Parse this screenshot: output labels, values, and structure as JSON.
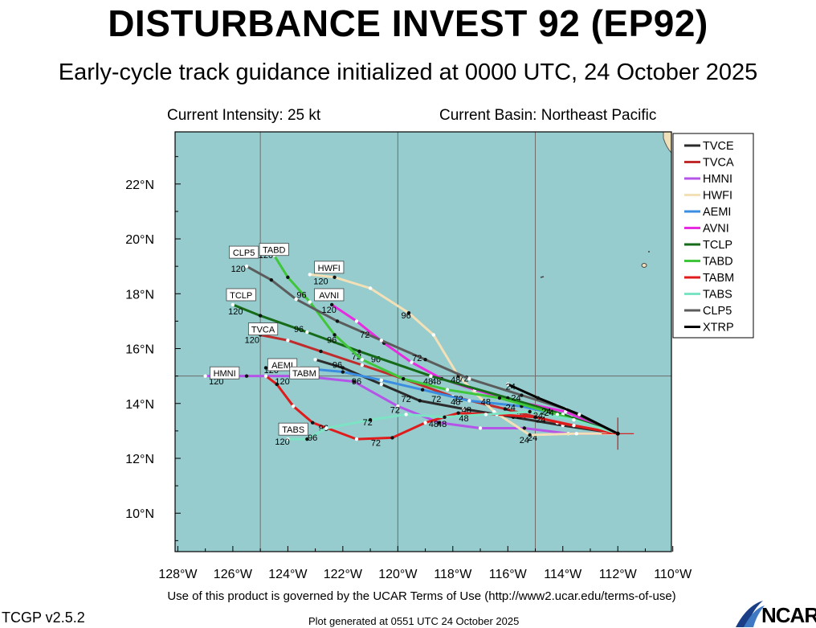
{
  "header": {
    "title": "DISTURBANCE INVEST 92 (EP92)",
    "subtitle": "Early-cycle track guidance initialized at 0000 UTC, 24 October 2025",
    "intensity": "Current Intensity: 25 kt",
    "basin": "Current Basin: Northeast Pacific"
  },
  "footer": {
    "terms": "Use of this product is governed by the UCAR Terms of Use (http://www2.ucar.edu/terms-of-use)",
    "version": "TCGP v2.5.2",
    "generated": "Plot generated at 0551 UTC   24 October 2025",
    "logo_text": "NCAR"
  },
  "colors": {
    "ocean": "#96cccd",
    "land": "#efe0b9",
    "grid": "#6d6d6d"
  },
  "chart_data": {
    "type": "line",
    "x_ticks": [
      "128°W",
      "126°W",
      "124°W",
      "122°W",
      "120°W",
      "118°W",
      "116°W",
      "114°W",
      "112°W",
      "110°W"
    ],
    "x_tick_values": [
      -128,
      -126,
      -124,
      -122,
      -120,
      -118,
      -116,
      -114,
      -112,
      -110
    ],
    "y_ticks": [
      "10°N",
      "12°N",
      "14°N",
      "16°N",
      "18°N",
      "20°N",
      "22°N"
    ],
    "y_tick_values": [
      10,
      12,
      14,
      16,
      18,
      20,
      22
    ],
    "xlim": [
      -128.1,
      -110.05
    ],
    "ylim": [
      8.6,
      23.9
    ],
    "grid_lon": [
      -125,
      -120,
      -115
    ],
    "grid_lat": [
      15
    ],
    "legend_position": "right",
    "storm_position": {
      "lon": -112.0,
      "lat": 12.9
    },
    "series": [
      {
        "name": "TVCE",
        "color": "#2b2b2b",
        "tag": "",
        "points": [
          [
            -112.0,
            12.9
          ],
          [
            -114.0,
            13.2
          ],
          [
            -115.8,
            13.5
          ],
          [
            -117.6,
            13.8
          ],
          [
            -119.2,
            14.1
          ],
          [
            -120.6,
            14.7
          ],
          [
            -122.0,
            15.3
          ],
          [
            -123.0,
            15.6
          ]
        ],
        "labels": [
          {
            "text": "24",
            "lon": -115.5,
            "lat": 13.45
          },
          {
            "text": "48",
            "lon": -117.5,
            "lat": 13.65
          },
          {
            "text": "72",
            "lon": -119.7,
            "lat": 14.05
          }
        ]
      },
      {
        "name": "TVCA",
        "color": "#c02b2b",
        "tag": "TVCA",
        "points": [
          [
            -112.0,
            12.9
          ],
          [
            -114.2,
            13.3
          ],
          [
            -116.1,
            13.8
          ],
          [
            -118.0,
            14.25
          ],
          [
            -119.8,
            14.9
          ],
          [
            -121.3,
            15.4
          ],
          [
            -122.8,
            15.9
          ],
          [
            -124.0,
            16.3
          ],
          [
            -125.0,
            16.5
          ]
        ],
        "labels": [
          {
            "text": "96",
            "lon": -122.2,
            "lat": 15.3
          }
        ]
      },
      {
        "name": "HMNI",
        "color": "#b455e8",
        "tag": "HMNI",
        "points": [
          [
            -112.0,
            12.9
          ],
          [
            -113.8,
            12.9
          ],
          [
            -115.4,
            13.1
          ],
          [
            -117.0,
            13.1
          ],
          [
            -118.5,
            13.3
          ],
          [
            -120.0,
            13.9
          ],
          [
            -121.6,
            14.8
          ],
          [
            -123.5,
            15.0
          ],
          [
            -125.5,
            15.0
          ],
          [
            -127.0,
            15.0
          ]
        ],
        "labels": [
          {
            "text": "24",
            "lon": -115.1,
            "lat": 12.65
          },
          {
            "text": "48",
            "lon": -118.4,
            "lat": 13.15
          },
          {
            "text": "72",
            "lon": -120.1,
            "lat": 13.65
          },
          {
            "text": "96",
            "lon": -121.5,
            "lat": 14.7
          }
        ]
      },
      {
        "name": "HWFI",
        "color": "#f3e0b6",
        "tag": "HWFI",
        "points": [
          [
            -112.0,
            12.9
          ],
          [
            -113.5,
            12.9
          ],
          [
            -115.2,
            12.85
          ],
          [
            -116.5,
            13.7
          ],
          [
            -117.8,
            15.0
          ],
          [
            -118.7,
            16.5
          ],
          [
            -119.6,
            17.3
          ],
          [
            -121.0,
            18.2
          ],
          [
            -122.3,
            18.6
          ],
          [
            -123.2,
            18.7
          ]
        ],
        "labels": [
          {
            "text": "24",
            "lon": -115.4,
            "lat": 12.55
          },
          {
            "text": "72",
            "lon": -117.6,
            "lat": 14.8
          },
          {
            "text": "96",
            "lon": -119.7,
            "lat": 17.1
          }
        ]
      },
      {
        "name": "AEMI",
        "color": "#3a8de0",
        "tag": "AEMI",
        "points": [
          [
            -112.0,
            12.9
          ],
          [
            -113.7,
            13.5
          ],
          [
            -115.5,
            13.9
          ],
          [
            -117.4,
            14.1
          ],
          [
            -119.1,
            14.5
          ],
          [
            -120.6,
            14.85
          ],
          [
            -122.0,
            15.15
          ],
          [
            -123.6,
            15.3
          ],
          [
            -124.8,
            15.3
          ]
        ],
        "labels": [
          {
            "text": "48",
            "lon": -116.8,
            "lat": 13.95
          }
        ]
      },
      {
        "name": "AVNI",
        "color": "#e72be0",
        "tag": "AVNI",
        "points": [
          [
            -112.0,
            12.9
          ],
          [
            -113.9,
            13.7
          ],
          [
            -115.8,
            14.1
          ],
          [
            -117.2,
            14.5
          ],
          [
            -118.4,
            14.9
          ],
          [
            -119.5,
            15.5
          ],
          [
            -120.5,
            16.2
          ],
          [
            -121.5,
            17.0
          ],
          [
            -122.4,
            17.6
          ]
        ],
        "labels": [
          {
            "text": "48",
            "lon": -118.6,
            "lat": 14.7
          },
          {
            "text": "96",
            "lon": -120.8,
            "lat": 15.5
          }
        ]
      },
      {
        "name": "TCLP",
        "color": "#156b18",
        "tag": "TCLP",
        "points": [
          [
            -112.0,
            12.9
          ],
          [
            -114.0,
            13.6
          ],
          [
            -116.0,
            14.2
          ],
          [
            -118.8,
            15.0
          ],
          [
            -121.4,
            15.9
          ],
          [
            -123.3,
            16.6
          ],
          [
            -125.0,
            17.2
          ],
          [
            -126.0,
            17.6
          ]
        ],
        "labels": [
          {
            "text": "24",
            "lon": -115.7,
            "lat": 14.1
          },
          {
            "text": "48",
            "lon": -118.9,
            "lat": 14.7
          },
          {
            "text": "72",
            "lon": -121.5,
            "lat": 15.6
          },
          {
            "text": "96",
            "lon": -123.6,
            "lat": 16.6
          }
        ]
      },
      {
        "name": "TABD",
        "color": "#3fc63b",
        "tag": "TABD",
        "points": [
          [
            -112.0,
            12.9
          ],
          [
            -114.2,
            13.6
          ],
          [
            -116.3,
            14.2
          ],
          [
            -118.2,
            14.5
          ],
          [
            -119.8,
            14.9
          ],
          [
            -121.3,
            15.6
          ],
          [
            -122.3,
            16.5
          ],
          [
            -123.2,
            17.7
          ],
          [
            -124.0,
            18.6
          ],
          [
            -124.5,
            19.4
          ]
        ],
        "labels": [
          {
            "text": "96",
            "lon": -122.4,
            "lat": 16.2
          },
          {
            "text": "96",
            "lon": -123.5,
            "lat": 17.85
          }
        ]
      },
      {
        "name": "TABM",
        "color": "#e01b1b",
        "tag": "TABM",
        "points": [
          [
            -112.0,
            12.9
          ],
          [
            -113.6,
            13.2
          ],
          [
            -115.0,
            13.5
          ],
          [
            -116.4,
            13.6
          ],
          [
            -117.8,
            13.65
          ],
          [
            -119.0,
            13.3
          ],
          [
            -120.2,
            12.75
          ],
          [
            -121.5,
            12.7
          ],
          [
            -123.1,
            13.3
          ],
          [
            -123.8,
            13.9
          ],
          [
            -124.4,
            14.7
          ],
          [
            -124.8,
            15.0
          ]
        ],
        "labels": [
          {
            "text": "24",
            "lon": -114.8,
            "lat": 13.3
          },
          {
            "text": "48",
            "lon": -118.7,
            "lat": 13.15
          },
          {
            "text": "72",
            "lon": -120.8,
            "lat": 12.45
          },
          {
            "text": "96",
            "lon": -122.7,
            "lat": 13.0
          }
        ]
      },
      {
        "name": "TABS",
        "color": "#7de3c5",
        "tag": "TABS",
        "points": [
          [
            -112.0,
            12.9
          ],
          [
            -113.6,
            13.4
          ],
          [
            -115.2,
            13.7
          ],
          [
            -116.8,
            13.6
          ],
          [
            -118.3,
            13.5
          ],
          [
            -119.7,
            13.6
          ],
          [
            -121.0,
            13.4
          ],
          [
            -122.6,
            13.1
          ],
          [
            -123.3,
            12.7
          ],
          [
            -124.0,
            12.7
          ]
        ],
        "labels": [
          {
            "text": "24",
            "lon": -114.5,
            "lat": 13.55
          },
          {
            "text": "48",
            "lon": -117.6,
            "lat": 13.35
          },
          {
            "text": "72",
            "lon": -121.1,
            "lat": 13.2
          },
          {
            "text": "96",
            "lon": -123.1,
            "lat": 12.65
          }
        ]
      },
      {
        "name": "CLP5",
        "color": "#5c5c5c",
        "tag": "CLP5",
        "points": [
          [
            -112.0,
            12.9
          ],
          [
            -113.9,
            13.8
          ],
          [
            -115.5,
            14.3
          ],
          [
            -117.4,
            14.9
          ],
          [
            -119.0,
            15.6
          ],
          [
            -120.6,
            16.3
          ],
          [
            -122.2,
            17.0
          ],
          [
            -123.7,
            17.8
          ],
          [
            -124.6,
            18.5
          ],
          [
            -125.5,
            19.0
          ]
        ],
        "labels": [
          {
            "text": "48",
            "lon": -117.9,
            "lat": 14.75
          },
          {
            "text": "72",
            "lon": -119.3,
            "lat": 15.55
          },
          {
            "text": "72",
            "lon": -121.2,
            "lat": 16.4
          }
        ]
      },
      {
        "name": "XTRP",
        "color": "#000000",
        "tag": "",
        "points": [
          [
            -112.0,
            12.9
          ],
          [
            -113.4,
            13.6
          ],
          [
            -114.9,
            14.2
          ],
          [
            -116.0,
            14.7
          ]
        ],
        "labels": [
          {
            "text": "24",
            "lon": -115.9,
            "lat": 14.5
          }
        ]
      }
    ],
    "extra_labels": [
      {
        "text": "120",
        "lon": -125.8,
        "lat": 18.8
      },
      {
        "text": "120",
        "lon": -124.8,
        "lat": 19.3
      },
      {
        "text": "120",
        "lon": -122.8,
        "lat": 18.35
      },
      {
        "text": "120",
        "lon": -122.5,
        "lat": 17.3
      },
      {
        "text": "120",
        "lon": -125.9,
        "lat": 17.25
      },
      {
        "text": "120",
        "lon": -125.3,
        "lat": 16.2
      },
      {
        "text": "120",
        "lon": -124.6,
        "lat": 15.1
      },
      {
        "text": "120",
        "lon": -126.6,
        "lat": 14.7
      },
      {
        "text": "120",
        "lon": -124.2,
        "lat": 14.7
      },
      {
        "text": "120",
        "lon": -124.2,
        "lat": 12.5
      },
      {
        "text": "24",
        "lon": -115.9,
        "lat": 13.75
      },
      {
        "text": "48",
        "lon": -117.9,
        "lat": 13.95
      },
      {
        "text": "72",
        "lon": -117.8,
        "lat": 14.05
      },
      {
        "text": "72",
        "lon": -118.6,
        "lat": 14.05
      },
      {
        "text": "24",
        "lon": -114.9,
        "lat": 13.45
      },
      {
        "text": "24",
        "lon": -114.6,
        "lat": 13.6
      }
    ],
    "tags": [
      {
        "text": "HWFI",
        "lon": -122.5,
        "lat": 18.95
      },
      {
        "text": "TABD",
        "lon": -124.5,
        "lat": 19.6
      },
      {
        "text": "CLP5",
        "lon": -125.6,
        "lat": 19.5
      },
      {
        "text": "AVNI",
        "lon": -122.5,
        "lat": 17.95
      },
      {
        "text": "TCLP",
        "lon": -125.7,
        "lat": 17.95
      },
      {
        "text": "TVCA",
        "lon": -124.9,
        "lat": 16.7
      },
      {
        "text": "AEMI",
        "lon": -124.2,
        "lat": 15.4
      },
      {
        "text": "HMNI",
        "lon": -126.3,
        "lat": 15.1
      },
      {
        "text": "TABM",
        "lon": -123.4,
        "lat": 15.1
      },
      {
        "text": "TABS",
        "lon": -123.8,
        "lat": 13.05
      }
    ]
  }
}
